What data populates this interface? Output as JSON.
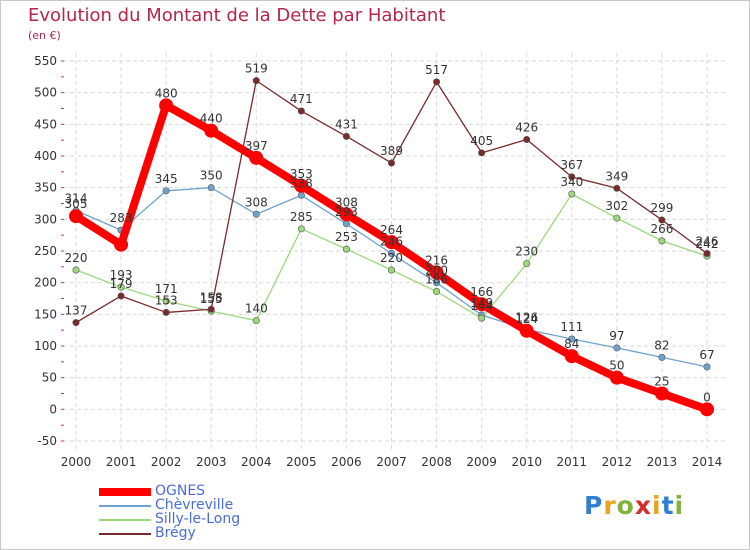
{
  "chart_data": {
    "type": "line",
    "title": "Evolution du Montant de la Dette par Habitant",
    "subtitle": "(en €)",
    "x": [
      "2000",
      "2001",
      "2002",
      "2003",
      "2004",
      "2005",
      "2006",
      "2007",
      "2008",
      "2009",
      "2010",
      "2011",
      "2012",
      "2013",
      "2014"
    ],
    "ylim": [
      -50,
      550
    ],
    "yticks": [
      -50,
      0,
      50,
      100,
      150,
      200,
      250,
      300,
      350,
      400,
      450,
      500,
      550
    ],
    "grid": true,
    "legend_position": "bottom-left",
    "series": [
      {
        "name": "OGNES",
        "color": "#ff0000",
        "emphasis": true,
        "values": [
          305,
          260,
          480,
          440,
          397,
          353,
          308,
          264,
          216,
          166,
          124,
          84,
          50,
          25,
          0
        ],
        "labels": [
          "305",
          "",
          "480",
          "440",
          "397",
          "353",
          "308",
          "264",
          "216",
          "166",
          "124",
          "84",
          "50",
          "25",
          "0"
        ]
      },
      {
        "name": "Chèvreville",
        "color": "#6fa3cf",
        "values": [
          314,
          283,
          345,
          350,
          308,
          338,
          293,
          246,
          200,
          149,
          126,
          111,
          97,
          82,
          67
        ],
        "labels": [
          "314",
          "283",
          "345",
          "350",
          "308",
          "338",
          "293",
          "246",
          "200",
          "149",
          "126",
          "111",
          "97",
          "82",
          "67"
        ]
      },
      {
        "name": "Silly-le-Long",
        "color": "#9cd97a",
        "values": [
          220,
          193,
          171,
          155,
          140,
          285,
          253,
          220,
          186,
          144,
          230,
          340,
          302,
          266,
          242
        ],
        "labels": [
          "220",
          "193",
          "171",
          "155",
          "140",
          "285",
          "253",
          "220",
          "186",
          "144",
          "230",
          "340",
          "302",
          "266",
          "242"
        ]
      },
      {
        "name": "Brégy",
        "color": "#7a2a2a",
        "values": [
          137,
          179,
          153,
          158,
          519,
          471,
          431,
          389,
          517,
          405,
          426,
          367,
          349,
          299,
          246
        ],
        "labels": [
          "137",
          "179",
          "153",
          "158",
          "519",
          "471",
          "431",
          "389",
          "517",
          "405",
          "426",
          "367",
          "349",
          "299",
          "246"
        ]
      }
    ]
  },
  "brand": {
    "letters": [
      "P",
      "r",
      "o",
      "x",
      "i",
      "t",
      "i"
    ]
  }
}
